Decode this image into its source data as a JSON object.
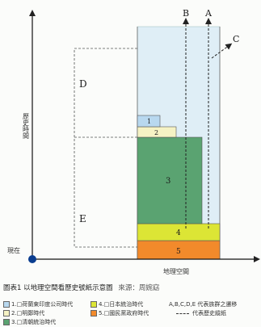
{
  "diagram": {
    "axis_y_label": "歷史時間",
    "axis_x_label": "地理空間",
    "origin_label": "現在",
    "line_labels": [
      "A",
      "B",
      "C"
    ],
    "region_labels": [
      "D",
      "E"
    ],
    "layers": [
      {
        "id": "1",
        "label": "1",
        "color": "#b8d8ef"
      },
      {
        "id": "2",
        "label": "2",
        "color": "#f5f2c4"
      },
      {
        "id": "3",
        "label": "3",
        "color": "#5aa371"
      },
      {
        "id": "4",
        "label": "4",
        "color": "#dce535"
      },
      {
        "id": "5",
        "label": "5",
        "color": "#f28a2b"
      }
    ],
    "space_tint": "#dfeef6",
    "origin_dot_color": "#0a3d8f"
  },
  "caption": {
    "title": "圖表1 以地理空間看歷史號紙示意圖",
    "source": "來源：周婉窈"
  },
  "legend": {
    "items": [
      {
        "key": "1",
        "text": "1.□荷蘭東印度公司時代"
      },
      {
        "key": "2",
        "text": "2.□明鄭時代"
      },
      {
        "key": "3",
        "text": "3.□清朝統治時代"
      },
      {
        "key": "4",
        "text": "4.□日本統治時代"
      },
      {
        "key": "5",
        "text": "5.□國民黨政府時代"
      }
    ],
    "abc_note": "A,B,C,D,E 代表族群之遷移",
    "dash_note": "代表歷史縱紙"
  }
}
